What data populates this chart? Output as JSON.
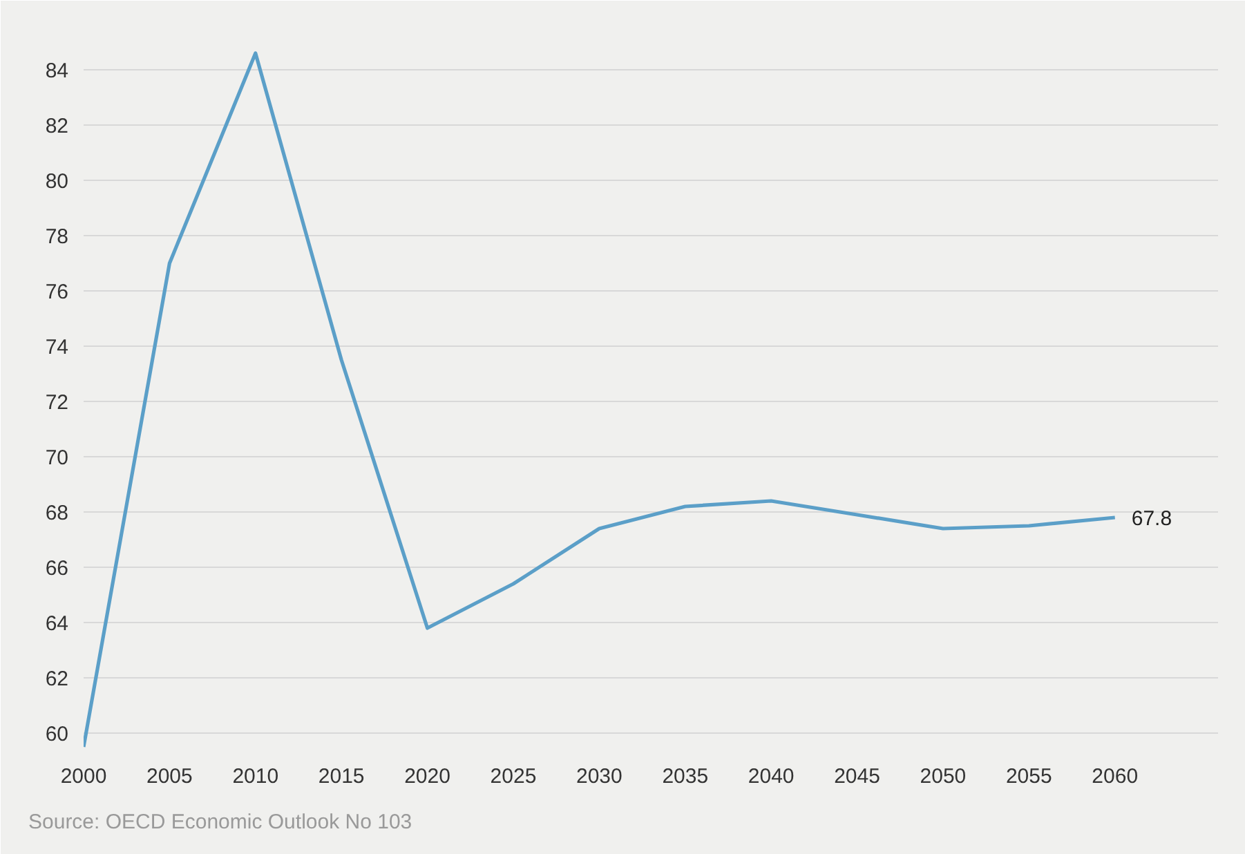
{
  "chart_data": {
    "type": "line",
    "x": [
      2000,
      2005,
      2010,
      2015,
      2020,
      2025,
      2030,
      2035,
      2040,
      2045,
      2050,
      2055,
      2060
    ],
    "series": [
      {
        "color": "#5b9fc8",
        "values": [
          59.5,
          77.0,
          84.6,
          73.5,
          63.8,
          65.4,
          67.4,
          68.2,
          68.4,
          67.9,
          67.4,
          67.5,
          67.8
        ],
        "value_labels": [
          null,
          null,
          null,
          null,
          null,
          null,
          null,
          null,
          null,
          null,
          null,
          null,
          "67.8"
        ]
      }
    ],
    "xlim": [
      2000,
      2066
    ],
    "xticks": [
      2000,
      2005,
      2010,
      2015,
      2020,
      2025,
      2030,
      2035,
      2040,
      2045,
      2050,
      2055,
      2060
    ],
    "ylim": [
      59.3,
      85.5
    ],
    "yticks": [
      60,
      62,
      64,
      66,
      68,
      70,
      72,
      74,
      76,
      78,
      80,
      82,
      84
    ],
    "grid": "y",
    "marker": "none",
    "line_style": "solid",
    "annotations": [
      "Source: OECD Economic Outlook No 103"
    ]
  }
}
